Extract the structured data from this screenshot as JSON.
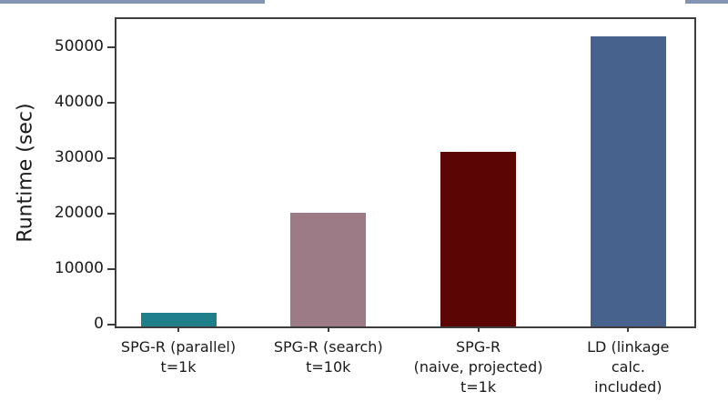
{
  "page": {
    "background_color": "#ffffff",
    "decor_rule_color": "#8393b4"
  },
  "chart_data": {
    "type": "bar",
    "title": "",
    "xlabel": "",
    "ylabel": "Runtime (sec)",
    "categories": [
      "SPG-R (parallel)\nt=1k",
      "SPG-R (search)\nt=10k",
      "SPG-R\n(naive, projected)\nt=1k",
      "LD (linkage\ncalc. included)"
    ],
    "values": [
      2500,
      20500,
      31500,
      52300
    ],
    "bar_colors": [
      "#1f808b",
      "#9c7b87",
      "#5c0505",
      "#48628e"
    ],
    "yticks": [
      0,
      10000,
      20000,
      30000,
      40000,
      50000
    ],
    "ylim": [
      0,
      55400
    ],
    "grid": false,
    "legend": "none",
    "axis_color": "#3d3d3d",
    "text_color": "#1a1a1a"
  }
}
